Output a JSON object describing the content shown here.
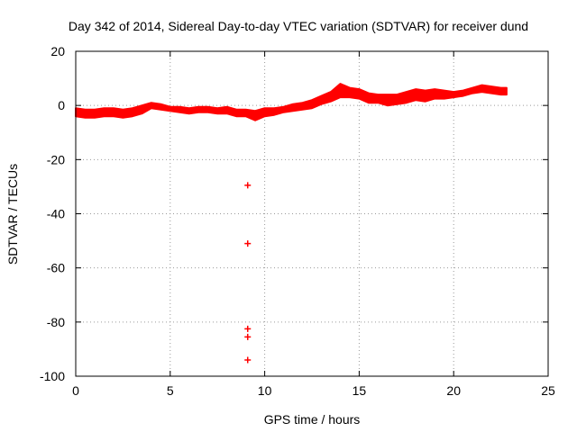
{
  "chart_data": {
    "type": "scatter",
    "title": "Day 342 of 2014, Sidereal Day-to-day VTEC variation (SDTVAR) for receiver dund",
    "xlabel": "GPS time / hours",
    "ylabel": "SDTVAR / TECUs",
    "xlim": [
      0,
      25
    ],
    "ylim": [
      -100,
      20
    ],
    "xticks": [
      0,
      5,
      10,
      15,
      20,
      25
    ],
    "yticks": [
      -100,
      -80,
      -60,
      -40,
      -20,
      0,
      20
    ],
    "grid": true,
    "grid_style": "dotted",
    "marker": "+",
    "color": "#ff0000",
    "band": {
      "x": [
        0,
        0.5,
        1,
        1.5,
        2,
        2.5,
        3,
        3.5,
        4,
        4.5,
        5,
        5.5,
        6,
        6.5,
        7,
        7.5,
        8,
        8.5,
        9,
        9.5,
        10,
        10.5,
        11,
        11.5,
        12,
        12.5,
        13,
        13.5,
        14,
        14.5,
        15,
        15.5,
        16,
        16.5,
        17,
        17.5,
        18,
        18.5,
        19,
        19.5,
        20,
        20.5,
        21,
        21.5,
        22,
        22.5,
        22.8
      ],
      "upper": [
        -1,
        -1.5,
        -1.5,
        -1,
        -1,
        -1.5,
        -1,
        0,
        1,
        0.5,
        -0.5,
        -0.5,
        -1,
        -0.5,
        -0.5,
        -1,
        -0.5,
        -1.5,
        -1.5,
        -2,
        -1,
        -1,
        -0.5,
        0.5,
        1,
        2,
        3.5,
        5,
        8,
        6.5,
        6,
        4.5,
        4,
        4,
        4,
        5,
        6,
        5.5,
        6,
        5.5,
        5,
        5.5,
        6.5,
        7.5,
        7,
        6.5,
        6.5
      ],
      "lower": [
        -4,
        -4.5,
        -4.5,
        -4,
        -4,
        -4.5,
        -4,
        -3,
        -1,
        -1.5,
        -2,
        -2.5,
        -3,
        -2.5,
        -2.5,
        -3,
        -3,
        -4,
        -4,
        -5.5,
        -4,
        -3.5,
        -2.5,
        -2,
        -1.5,
        -1,
        0.5,
        1.5,
        3,
        3,
        2.5,
        1,
        1,
        0,
        0.5,
        1,
        2,
        1.5,
        2.5,
        2.5,
        3,
        3.5,
        4.5,
        5,
        4.5,
        4,
        4
      ]
    },
    "outliers": [
      {
        "x": 9.1,
        "y": -29.5
      },
      {
        "x": 9.1,
        "y": -51
      },
      {
        "x": 9.1,
        "y": -82.5
      },
      {
        "x": 9.1,
        "y": -85.5
      },
      {
        "x": 9.1,
        "y": -94
      }
    ]
  }
}
